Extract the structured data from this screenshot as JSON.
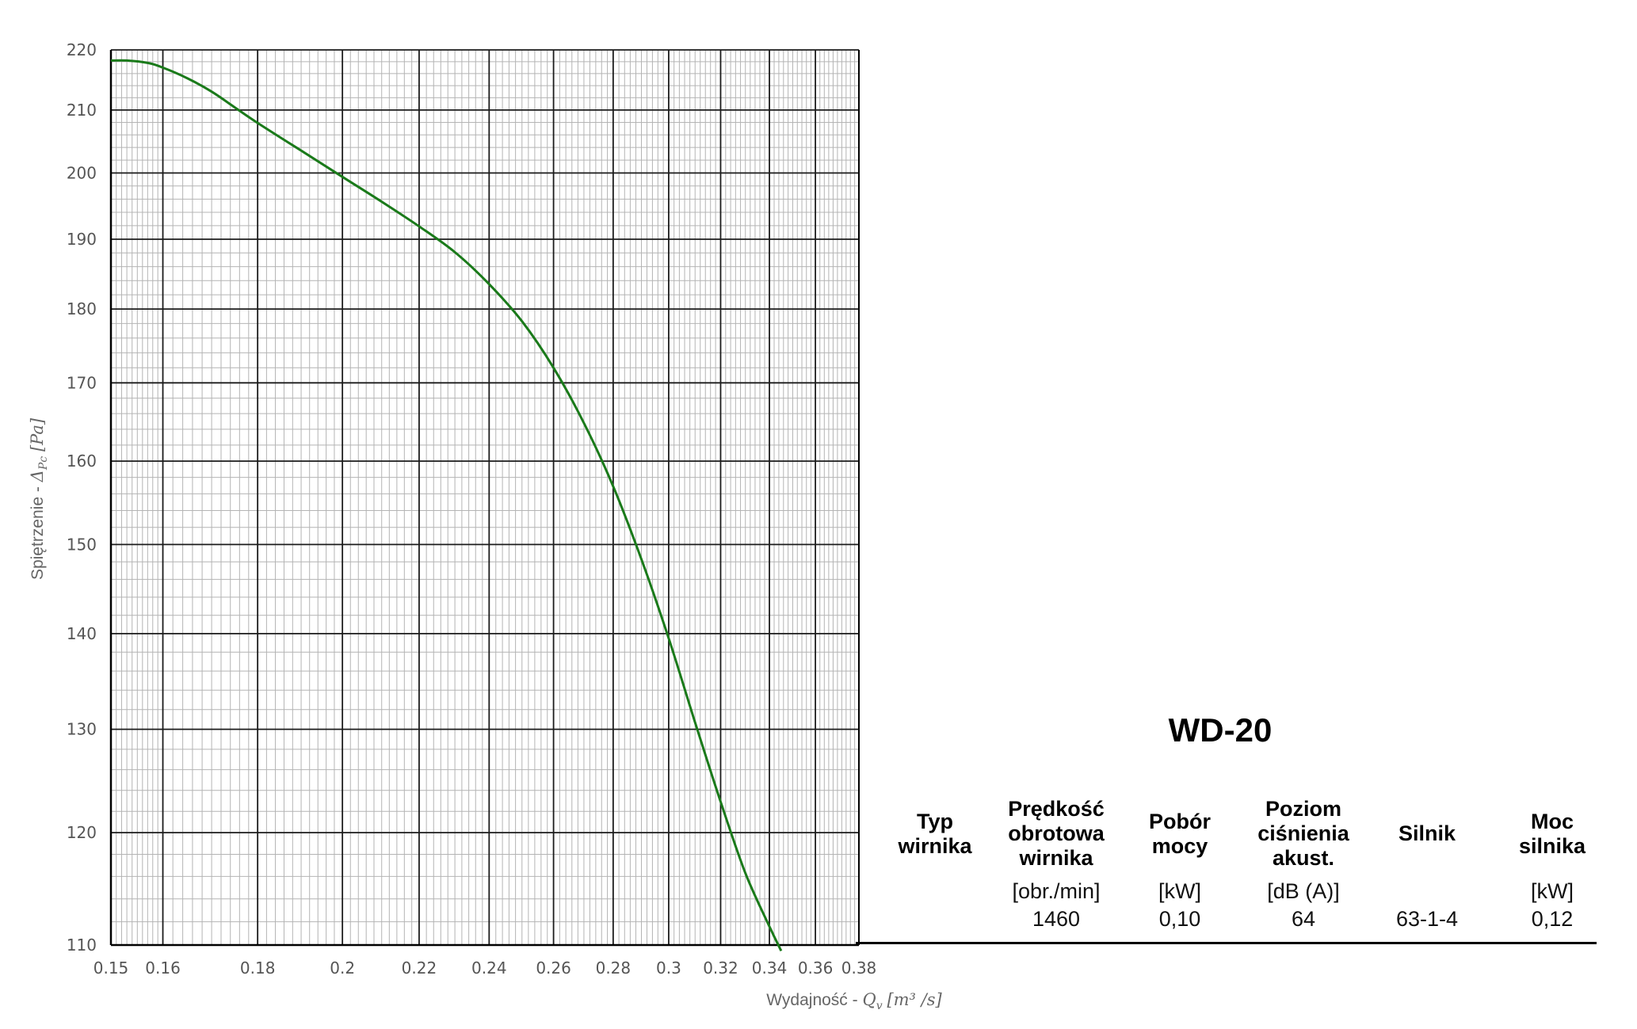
{
  "chart_data": {
    "type": "line",
    "title": "",
    "xlabel": "Wydajność - ",
    "xlabel_math": "Q",
    "xlabel_math_sub": "v",
    "xlabel_unit": "[m³ /s]",
    "ylabel": "Spiętrzenie - ",
    "ylabel_math": "Δ",
    "ylabel_math_sub": "Pc",
    "ylabel_unit": "[Pa]",
    "xlim": [
      0.15,
      0.38
    ],
    "ylim": [
      110,
      220
    ],
    "x_scale": "log",
    "y_scale": "log",
    "grid": true,
    "x_ticks": [
      0.15,
      0.16,
      0.18,
      0.2,
      0.22,
      0.24,
      0.26,
      0.28,
      0.3,
      0.32,
      0.34,
      0.36,
      0.38
    ],
    "x_tick_labels": [
      "0.15",
      "0.16",
      "0.18",
      "0.2",
      "0.22",
      "0.24",
      "0.26",
      "0.28",
      "0.3",
      "0.32",
      "0.34",
      "0.36",
      "0.38"
    ],
    "y_ticks": [
      110,
      120,
      130,
      140,
      150,
      160,
      170,
      180,
      190,
      200,
      210,
      220
    ],
    "y_tick_labels": [
      "110",
      "120",
      "130",
      "140",
      "150",
      "160",
      "170",
      "180",
      "190",
      "200",
      "210",
      "220"
    ],
    "series": [
      {
        "color": "#1a7a1a",
        "x": [
          0.15,
          0.153,
          0.157,
          0.16,
          0.165,
          0.17,
          0.175,
          0.18,
          0.19,
          0.2,
          0.21,
          0.22,
          0.23,
          0.24,
          0.25,
          0.26,
          0.27,
          0.28,
          0.29,
          0.3,
          0.31,
          0.32,
          0.33,
          0.34,
          0.345
        ],
        "y": [
          218.2,
          218.2,
          217.8,
          217.0,
          215.2,
          213.0,
          210.4,
          207.9,
          203.5,
          199.4,
          195.6,
          191.9,
          188.1,
          183.5,
          178.3,
          172.0,
          164.8,
          156.9,
          148.3,
          139.5,
          130.7,
          122.9,
          116.3,
          111.6,
          109.5
        ]
      }
    ]
  },
  "spec": {
    "title": "WD-20",
    "columns": [
      {
        "header": "Typ\nwirnika",
        "unit": "",
        "value": ""
      },
      {
        "header": "Prędkość\nobrotowa\nwirnika",
        "unit": "[obr./min]",
        "value": "1460"
      },
      {
        "header": "Pobór\nmocy",
        "unit": "[kW]",
        "value": "0,10"
      },
      {
        "header": "Poziom\nciśnienia\nakust.",
        "unit": "[dB (A)]",
        "value": "64"
      },
      {
        "header": "Silnik",
        "unit": "",
        "value": "63-1-4"
      },
      {
        "header": "Moc\nsilnika",
        "unit": "[kW]",
        "value": "0,12"
      }
    ]
  }
}
